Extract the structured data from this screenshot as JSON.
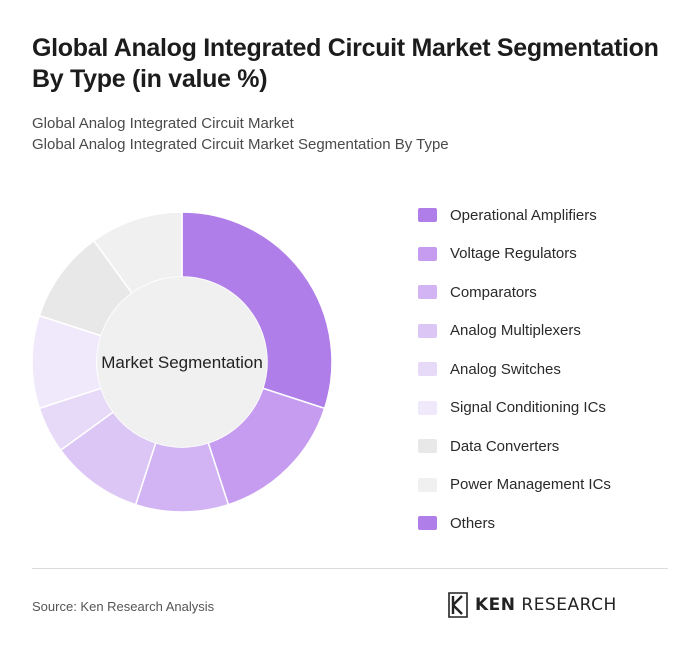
{
  "title": "Global Analog Integrated Circuit Market Segmentation By Type (in value %)",
  "subtitle_lines": [
    "Global Analog Integrated Circuit Market",
    "Global Analog Integrated Circuit Market Segmentation By Type"
  ],
  "chart_data": {
    "type": "pie",
    "center_label": "Market Segmentation",
    "categories": [
      "Operational Amplifiers",
      "Voltage Regulators",
      "Comparators",
      "Analog Multiplexers",
      "Analog Switches",
      "Signal Conditioning ICs",
      "Data Converters",
      "Power Management ICs",
      "Others"
    ],
    "values": [
      30,
      15,
      10,
      10,
      5,
      10,
      10,
      10,
      0
    ],
    "colors": [
      "#b07ee8",
      "#c59cef",
      "#d2b3f3",
      "#dcc6f5",
      "#e7d9f8",
      "#f0e9fb",
      "#e8e8e8",
      "#f0f0f0",
      "#b07ee8"
    ],
    "legend_position": "right"
  },
  "footer": {
    "source": "Source: Ken Research Analysis",
    "logo_text_left": "KEN",
    "logo_text_right": "RESEARCH"
  }
}
